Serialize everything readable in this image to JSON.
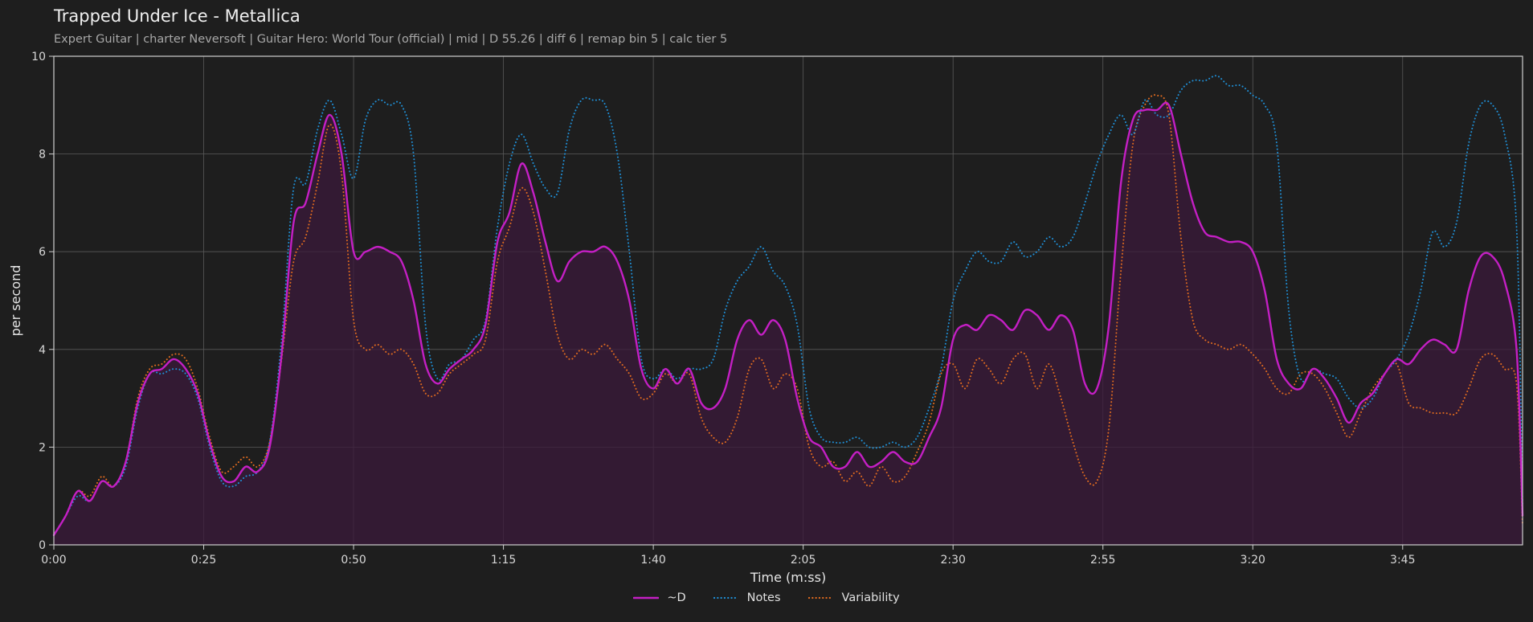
{
  "header": {
    "title": "Trapped Under Ice - Metallica",
    "subtitle": "Expert Guitar  |  charter Neversoft  |  Guitar Hero: World Tour (official)  |  mid  |  D 55.26  |  diff 6  |  remap bin 5  |  calc tier 5"
  },
  "chart_data": {
    "type": "line",
    "xlabel": "Time (m:ss)",
    "ylabel": "per second",
    "xlim": [
      0,
      245
    ],
    "ylim": [
      0,
      10
    ],
    "x_ticks": [
      0,
      25,
      50,
      75,
      100,
      125,
      150,
      175,
      200,
      225
    ],
    "x_tick_labels": [
      "0:00",
      "0:25",
      "0:50",
      "1:15",
      "1:40",
      "2:05",
      "2:30",
      "2:55",
      "3:20",
      "3:45"
    ],
    "y_ticks": [
      0,
      2,
      4,
      6,
      8,
      10
    ],
    "y_tick_labels": [
      "0",
      "2",
      "4",
      "6",
      "8",
      "10"
    ],
    "grid": true,
    "legend_position": "bottom-center",
    "series": [
      {
        "name": "~D",
        "color": "#c41fc4",
        "style": "solid",
        "fill": true,
        "x": [
          0,
          2,
          4,
          6,
          8,
          10,
          12,
          14,
          16,
          18,
          20,
          22,
          24,
          26,
          28,
          30,
          32,
          34,
          36,
          38,
          40,
          42,
          44,
          46,
          48,
          50,
          52,
          54,
          56,
          58,
          60,
          62,
          64,
          66,
          68,
          70,
          72,
          74,
          76,
          78,
          80,
          82,
          84,
          86,
          88,
          90,
          92,
          94,
          96,
          98,
          100,
          102,
          104,
          106,
          108,
          110,
          112,
          114,
          116,
          118,
          120,
          122,
          124,
          126,
          128,
          130,
          132,
          134,
          136,
          138,
          140,
          142,
          144,
          146,
          148,
          150,
          152,
          154,
          156,
          158,
          160,
          162,
          164,
          166,
          168,
          170,
          172,
          174,
          176,
          178,
          180,
          182,
          184,
          186,
          188,
          190,
          192,
          194,
          196,
          198,
          200,
          202,
          204,
          206,
          208,
          210,
          212,
          214,
          216,
          218,
          220,
          222,
          224,
          226,
          228,
          230,
          232,
          234,
          236,
          238,
          240,
          242,
          244,
          245
        ],
        "y": [
          0.2,
          0.6,
          1.1,
          0.9,
          1.3,
          1.2,
          1.7,
          2.9,
          3.5,
          3.6,
          3.8,
          3.6,
          3.1,
          2.1,
          1.4,
          1.3,
          1.6,
          1.5,
          2.0,
          3.9,
          6.6,
          7.0,
          8.0,
          8.8,
          8.0,
          6.0,
          6.0,
          6.1,
          6.0,
          5.8,
          5.0,
          3.7,
          3.3,
          3.6,
          3.8,
          4.0,
          4.5,
          6.2,
          6.8,
          7.8,
          7.2,
          6.2,
          5.4,
          5.8,
          6.0,
          6.0,
          6.1,
          5.8,
          5.0,
          3.6,
          3.2,
          3.6,
          3.3,
          3.6,
          2.9,
          2.8,
          3.2,
          4.2,
          4.6,
          4.3,
          4.6,
          4.2,
          3.0,
          2.2,
          2.0,
          1.6,
          1.6,
          1.9,
          1.6,
          1.7,
          1.9,
          1.7,
          1.7,
          2.2,
          2.8,
          4.2,
          4.5,
          4.4,
          4.7,
          4.6,
          4.4,
          4.8,
          4.7,
          4.4,
          4.7,
          4.4,
          3.3,
          3.2,
          4.5,
          7.4,
          8.7,
          8.9,
          8.9,
          9.0,
          8.0,
          7.0,
          6.4,
          6.3,
          6.2,
          6.2,
          6.0,
          5.2,
          3.8,
          3.3,
          3.2,
          3.6,
          3.4,
          3.0,
          2.5,
          2.9,
          3.1,
          3.5,
          3.8,
          3.7,
          4.0,
          4.2,
          4.1,
          4.0,
          5.2,
          5.9,
          5.9,
          5.4,
          4.0,
          0.6
        ]
      },
      {
        "name": "Notes",
        "color": "#1f8fd6",
        "style": "dotted",
        "fill": false,
        "x": [
          0,
          2,
          4,
          6,
          8,
          10,
          12,
          14,
          16,
          18,
          20,
          22,
          24,
          26,
          28,
          30,
          32,
          34,
          36,
          38,
          40,
          42,
          44,
          46,
          48,
          50,
          52,
          54,
          56,
          58,
          60,
          62,
          64,
          66,
          68,
          70,
          72,
          74,
          76,
          78,
          80,
          82,
          84,
          86,
          88,
          90,
          92,
          94,
          96,
          98,
          100,
          102,
          104,
          106,
          108,
          110,
          112,
          114,
          116,
          118,
          120,
          122,
          124,
          126,
          128,
          130,
          132,
          134,
          136,
          138,
          140,
          142,
          144,
          146,
          148,
          150,
          152,
          154,
          156,
          158,
          160,
          162,
          164,
          166,
          168,
          170,
          172,
          174,
          176,
          178,
          180,
          182,
          184,
          186,
          188,
          190,
          192,
          194,
          196,
          198,
          200,
          202,
          204,
          206,
          208,
          210,
          212,
          214,
          216,
          218,
          220,
          222,
          224,
          226,
          228,
          230,
          232,
          234,
          236,
          238,
          240,
          242,
          244,
          245
        ],
        "y": [
          0.2,
          0.6,
          1.0,
          0.9,
          1.3,
          1.2,
          1.6,
          2.8,
          3.5,
          3.5,
          3.6,
          3.5,
          3.0,
          2.0,
          1.3,
          1.2,
          1.4,
          1.5,
          2.1,
          4.2,
          7.3,
          7.4,
          8.5,
          9.1,
          8.4,
          7.5,
          8.7,
          9.1,
          9.0,
          9.0,
          8.0,
          4.5,
          3.4,
          3.7,
          3.8,
          4.2,
          4.6,
          6.5,
          7.8,
          8.4,
          7.8,
          7.3,
          7.2,
          8.5,
          9.1,
          9.1,
          9.0,
          8.0,
          6.0,
          3.8,
          3.4,
          3.6,
          3.4,
          3.6,
          3.6,
          3.8,
          4.8,
          5.4,
          5.7,
          6.1,
          5.6,
          5.3,
          4.5,
          2.8,
          2.2,
          2.1,
          2.1,
          2.2,
          2.0,
          2.0,
          2.1,
          2.0,
          2.2,
          2.8,
          3.6,
          5.0,
          5.6,
          6.0,
          5.8,
          5.8,
          6.2,
          5.9,
          6.0,
          6.3,
          6.1,
          6.3,
          7.0,
          7.8,
          8.4,
          8.8,
          8.4,
          9.1,
          8.8,
          8.8,
          9.3,
          9.5,
          9.5,
          9.6,
          9.4,
          9.4,
          9.2,
          9.0,
          8.2,
          4.8,
          3.4,
          3.6,
          3.5,
          3.4,
          3.0,
          2.8,
          3.0,
          3.5,
          3.8,
          4.3,
          5.2,
          6.4,
          6.1,
          6.6,
          8.2,
          9.0,
          9.0,
          8.4,
          6.5,
          0.8
        ]
      },
      {
        "name": "Variability",
        "color": "#e06b1f",
        "style": "dotted",
        "fill": false,
        "x": [
          0,
          2,
          4,
          6,
          8,
          10,
          12,
          14,
          16,
          18,
          20,
          22,
          24,
          26,
          28,
          30,
          32,
          34,
          36,
          38,
          40,
          42,
          44,
          46,
          48,
          50,
          52,
          54,
          56,
          58,
          60,
          62,
          64,
          66,
          68,
          70,
          72,
          74,
          76,
          78,
          80,
          82,
          84,
          86,
          88,
          90,
          92,
          94,
          96,
          98,
          100,
          102,
          104,
          106,
          108,
          110,
          112,
          114,
          116,
          118,
          120,
          122,
          124,
          126,
          128,
          130,
          132,
          134,
          136,
          138,
          140,
          142,
          144,
          146,
          148,
          150,
          152,
          154,
          156,
          158,
          160,
          162,
          164,
          166,
          168,
          170,
          172,
          174,
          176,
          178,
          180,
          182,
          184,
          186,
          188,
          190,
          192,
          194,
          196,
          198,
          200,
          202,
          204,
          206,
          208,
          210,
          212,
          214,
          216,
          218,
          220,
          222,
          224,
          226,
          228,
          230,
          232,
          234,
          236,
          238,
          240,
          242,
          244,
          245
        ],
        "y": [
          0.2,
          0.6,
          1.1,
          1.0,
          1.4,
          1.2,
          1.7,
          3.0,
          3.6,
          3.7,
          3.9,
          3.8,
          3.2,
          2.2,
          1.5,
          1.6,
          1.8,
          1.6,
          2.1,
          3.8,
          5.8,
          6.3,
          7.4,
          8.6,
          7.6,
          4.6,
          4.0,
          4.1,
          3.9,
          4.0,
          3.7,
          3.1,
          3.1,
          3.5,
          3.7,
          3.9,
          4.2,
          5.8,
          6.5,
          7.3,
          6.8,
          5.6,
          4.3,
          3.8,
          4.0,
          3.9,
          4.1,
          3.8,
          3.5,
          3.0,
          3.1,
          3.5,
          3.3,
          3.5,
          2.6,
          2.2,
          2.1,
          2.6,
          3.6,
          3.8,
          3.2,
          3.5,
          3.2,
          2.0,
          1.6,
          1.7,
          1.3,
          1.5,
          1.2,
          1.6,
          1.3,
          1.4,
          1.9,
          2.5,
          3.5,
          3.7,
          3.2,
          3.8,
          3.6,
          3.3,
          3.8,
          3.9,
          3.2,
          3.7,
          3.0,
          2.1,
          1.4,
          1.3,
          2.4,
          5.6,
          8.2,
          9.0,
          9.2,
          8.8,
          6.3,
          4.6,
          4.2,
          4.1,
          4.0,
          4.1,
          3.9,
          3.6,
          3.2,
          3.1,
          3.5,
          3.5,
          3.2,
          2.7,
          2.2,
          2.7,
          3.2,
          3.5,
          3.7,
          2.9,
          2.8,
          2.7,
          2.7,
          2.7,
          3.2,
          3.8,
          3.9,
          3.6,
          3.3,
          0.4
        ]
      }
    ]
  }
}
